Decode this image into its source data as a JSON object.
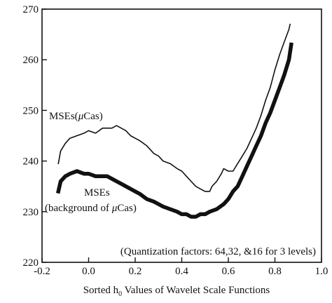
{
  "chart_data": {
    "type": "line",
    "title": "",
    "xlabel_parts": [
      "Sorted h",
      "0",
      " Values of  Wavelet Scale Functions"
    ],
    "ylabel": "",
    "xlim": [
      -0.2,
      1.0
    ],
    "ylim": [
      220,
      270
    ],
    "x_ticks": [
      -0.2,
      0.0,
      0.2,
      0.4,
      0.6,
      0.8,
      1.0
    ],
    "x_tick_labels": [
      "-0.2",
      "0.0",
      "0.2",
      "0.4",
      "0.6",
      "0.8",
      "1.0"
    ],
    "y_ticks": [
      220,
      230,
      240,
      250,
      260,
      270
    ],
    "y_tick_labels": [
      "220",
      "230",
      "240",
      "250",
      "260",
      "270"
    ],
    "grid": false,
    "legend": "none",
    "series": [
      {
        "name": "MSEs(μCas)",
        "label_parts": [
          "MSEs(",
          "μ",
          "Cas)"
        ],
        "style": "thin",
        "color": "#111111",
        "x": [
          -0.13,
          -0.12,
          -0.1,
          -0.08,
          -0.05,
          -0.02,
          0.0,
          0.03,
          0.06,
          0.08,
          0.1,
          0.12,
          0.14,
          0.16,
          0.18,
          0.2,
          0.22,
          0.25,
          0.28,
          0.3,
          0.32,
          0.35,
          0.38,
          0.4,
          0.42,
          0.44,
          0.46,
          0.48,
          0.5,
          0.52,
          0.53,
          0.55,
          0.57,
          0.58,
          0.6,
          0.62,
          0.64,
          0.66,
          0.68,
          0.7,
          0.72,
          0.74,
          0.76,
          0.78,
          0.8,
          0.82,
          0.84,
          0.86,
          0.865
        ],
        "y": [
          239.5,
          242.0,
          243.5,
          244.5,
          245.0,
          245.5,
          246.0,
          245.5,
          246.5,
          246.5,
          246.5,
          247.0,
          246.5,
          246.0,
          245.0,
          244.5,
          244.0,
          243.0,
          241.5,
          241.0,
          240.0,
          239.5,
          238.5,
          238.0,
          237.0,
          236.0,
          235.0,
          234.5,
          234.0,
          234.0,
          235.0,
          236.0,
          237.5,
          238.5,
          238.0,
          238.0,
          239.5,
          241.0,
          242.5,
          244.5,
          246.5,
          249.0,
          252.0,
          254.5,
          258.0,
          261.0,
          263.5,
          266.0,
          267.0
        ]
      },
      {
        "name": "MSEs (background of μCas)",
        "label_parts": [
          "MSEs",
          "(background of ",
          "μ",
          "Cas)"
        ],
        "style": "thick",
        "color": "#111111",
        "x": [
          -0.13,
          -0.12,
          -0.1,
          -0.08,
          -0.05,
          -0.02,
          0.0,
          0.03,
          0.06,
          0.08,
          0.1,
          0.12,
          0.14,
          0.16,
          0.18,
          0.2,
          0.22,
          0.25,
          0.28,
          0.3,
          0.32,
          0.35,
          0.38,
          0.4,
          0.42,
          0.44,
          0.46,
          0.48,
          0.5,
          0.52,
          0.55,
          0.58,
          0.6,
          0.62,
          0.64,
          0.66,
          0.68,
          0.7,
          0.72,
          0.74,
          0.76,
          0.78,
          0.8,
          0.82,
          0.84,
          0.86,
          0.87
        ],
        "y": [
          234.0,
          236.0,
          237.0,
          237.5,
          238.0,
          237.5,
          237.5,
          237.0,
          237.0,
          237.0,
          236.5,
          236.0,
          235.5,
          235.0,
          234.5,
          234.0,
          233.5,
          232.5,
          232.0,
          231.5,
          231.0,
          230.5,
          230.0,
          229.5,
          229.5,
          229.0,
          229.0,
          229.5,
          229.5,
          230.0,
          230.5,
          231.5,
          232.5,
          234.0,
          235.0,
          237.0,
          239.0,
          241.0,
          243.0,
          245.0,
          247.5,
          249.5,
          252.0,
          254.5,
          257.0,
          260.0,
          263.0
        ]
      }
    ],
    "annotation": "(Quantization factors: 64,32, &16 for 3 levels)"
  }
}
